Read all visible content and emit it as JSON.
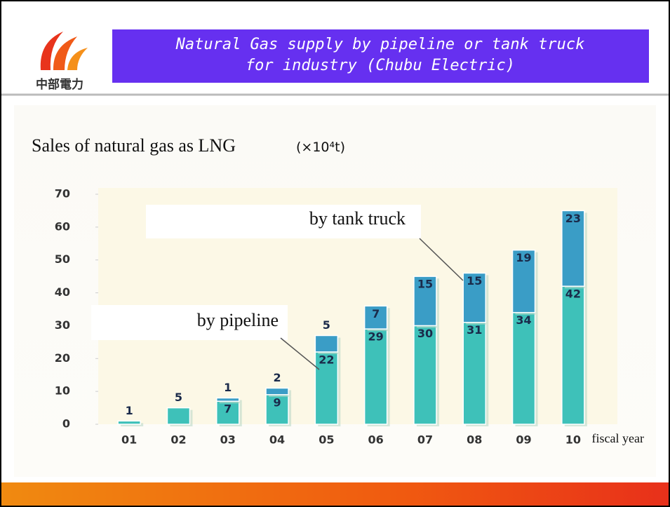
{
  "header": {
    "logo_text": "中部電力",
    "title": [
      "Natural Gas supply by  pipeline or tank truck",
      "for industry    (Chubu  Electric)"
    ]
  },
  "chart_data": {
    "type": "stacked_bar",
    "title": "Sales of natural gas as LNG",
    "unit": "(×10⁴t)",
    "x_label": "fiscal year",
    "categories": [
      "01",
      "02",
      "03",
      "04",
      "05",
      "06",
      "07",
      "08",
      "09",
      "10"
    ],
    "series": [
      {
        "name": "by pipeline",
        "color": "#3ec1b9",
        "values": [
          1,
          5,
          7,
          9,
          22,
          29,
          30,
          31,
          34,
          42
        ]
      },
      {
        "name": "by tank  truck",
        "color": "#3a9dc6",
        "values": [
          null,
          null,
          1,
          2,
          5,
          7,
          15,
          15,
          19,
          23
        ]
      }
    ],
    "ylim": [
      0,
      70
    ],
    "yticks": [
      0,
      10,
      20,
      30,
      40,
      50,
      60,
      70
    ]
  }
}
